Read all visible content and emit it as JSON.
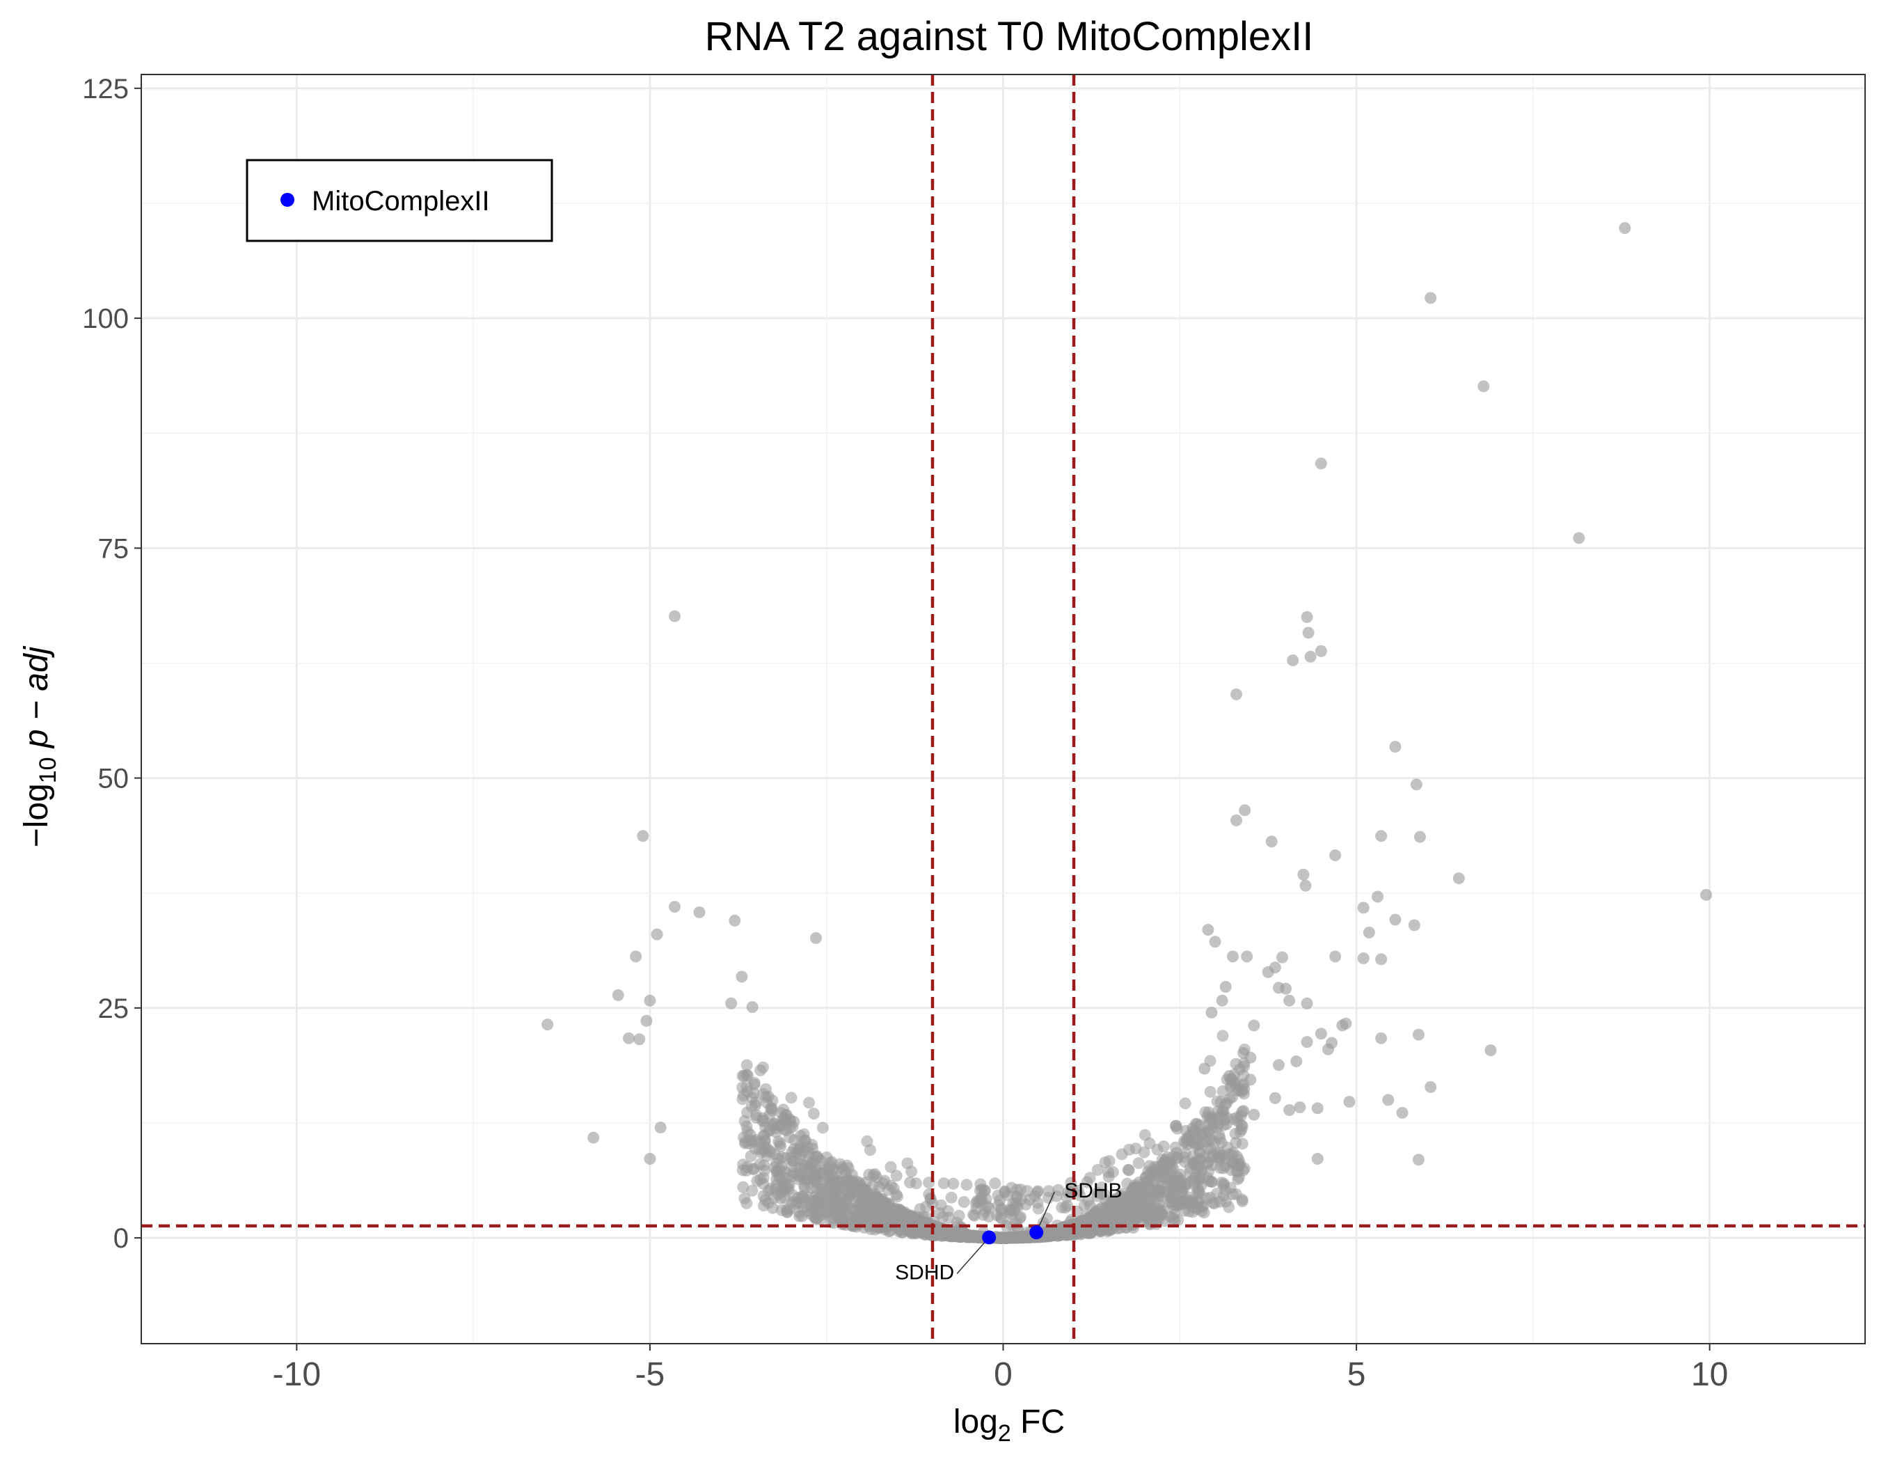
{
  "chart_data": {
    "type": "scatter",
    "title": "RNA T2 against T0 MitoComplexII",
    "xlabel": {
      "base": "log",
      "sub": "2",
      "rest": " FC"
    },
    "ylabel": {
      "minus": "−",
      "base": "log",
      "sub": "10",
      "rest": " p − adj"
    },
    "xlim": [
      -12.2,
      12.2
    ],
    "ylim": [
      -11.5,
      126.5
    ],
    "x_ticks": [
      -10,
      -5,
      0,
      5,
      10
    ],
    "x_tick_labels": [
      "-10",
      "-5",
      "0",
      "5",
      "10"
    ],
    "y_ticks": [
      0,
      25,
      50,
      75,
      100,
      125
    ],
    "y_tick_labels": [
      "0",
      "25",
      "50",
      "75",
      "100",
      "125"
    ],
    "grid": true,
    "thresholds": {
      "log2fc": [
        -1,
        1
      ],
      "neglog10_padj": 1.3,
      "color": "#9b1b1b"
    },
    "legend": {
      "position": "top-left",
      "entries": [
        {
          "label": "MitoComplexII",
          "color": "#0000ff"
        }
      ]
    },
    "background_points_color": "#999999",
    "background_outliers": [
      [
        8.8,
        109.8
      ],
      [
        6.05,
        102.2
      ],
      [
        6.8,
        92.6
      ],
      [
        4.5,
        84.2
      ],
      [
        8.15,
        76.1
      ],
      [
        -4.65,
        67.6
      ],
      [
        4.3,
        67.5
      ],
      [
        4.32,
        65.8
      ],
      [
        4.5,
        63.8
      ],
      [
        4.35,
        63.2
      ],
      [
        4.1,
        62.8
      ],
      [
        3.3,
        59.1
      ],
      [
        5.55,
        53.4
      ],
      [
        5.85,
        49.3
      ],
      [
        3.42,
        46.5
      ],
      [
        3.3,
        45.4
      ],
      [
        5.35,
        43.7
      ],
      [
        5.9,
        43.6
      ],
      [
        3.8,
        43.1
      ],
      [
        -5.1,
        43.7
      ],
      [
        4.7,
        41.6
      ],
      [
        4.25,
        39.5
      ],
      [
        4.28,
        38.3
      ],
      [
        6.45,
        39.1
      ],
      [
        9.95,
        37.3
      ],
      [
        5.1,
        35.9
      ],
      [
        5.3,
        37.1
      ],
      [
        5.55,
        34.6
      ],
      [
        5.82,
        34.0
      ],
      [
        5.18,
        33.2
      ],
      [
        -4.65,
        36.0
      ],
      [
        -4.3,
        35.4
      ],
      [
        -3.8,
        34.5
      ],
      [
        -4.9,
        33.0
      ],
      [
        -2.65,
        32.6
      ],
      [
        -5.2,
        30.6
      ],
      [
        -3.7,
        28.4
      ],
      [
        -5.45,
        26.4
      ],
      [
        -5.0,
        25.8
      ],
      [
        -3.55,
        25.1
      ],
      [
        -3.85,
        25.5
      ],
      [
        -6.45,
        23.2
      ],
      [
        -5.05,
        23.6
      ],
      [
        -5.3,
        21.7
      ],
      [
        -5.15,
        21.6
      ],
      [
        -5.8,
        10.9
      ],
      [
        -5.0,
        8.6
      ],
      [
        -4.85,
        12.0
      ],
      [
        2.9,
        33.5
      ],
      [
        3.0,
        32.2
      ],
      [
        3.25,
        30.6
      ],
      [
        3.45,
        30.6
      ],
      [
        3.95,
        30.5
      ],
      [
        4.7,
        30.6
      ],
      [
        5.1,
        30.4
      ],
      [
        5.35,
        30.3
      ],
      [
        3.85,
        29.4
      ],
      [
        3.75,
        28.9
      ],
      [
        3.9,
        27.2
      ],
      [
        4.0,
        27.1
      ],
      [
        3.15,
        27.3
      ],
      [
        3.1,
        25.8
      ],
      [
        4.05,
        25.8
      ],
      [
        4.3,
        25.5
      ],
      [
        2.95,
        24.5
      ],
      [
        4.85,
        23.3
      ],
      [
        4.8,
        23.1
      ],
      [
        3.55,
        23.1
      ],
      [
        4.5,
        22.2
      ],
      [
        4.65,
        21.2
      ],
      [
        5.35,
        21.7
      ],
      [
        5.88,
        22.1
      ],
      [
        6.9,
        20.4
      ],
      [
        3.4,
        20.1
      ],
      [
        3.5,
        19.6
      ],
      [
        4.6,
        20.5
      ],
      [
        4.3,
        21.3
      ],
      [
        4.15,
        19.2
      ],
      [
        3.9,
        18.8
      ],
      [
        2.85,
        18.4
      ],
      [
        3.2,
        17.6
      ],
      [
        3.5,
        17.2
      ],
      [
        4.9,
        14.8
      ],
      [
        5.45,
        15.0
      ],
      [
        6.05,
        16.4
      ],
      [
        5.65,
        13.6
      ],
      [
        4.2,
        14.2
      ],
      [
        4.45,
        14.1
      ],
      [
        4.05,
        13.9
      ],
      [
        3.55,
        13.4
      ],
      [
        4.45,
        8.6
      ],
      [
        5.88,
        8.5
      ],
      [
        3.85,
        15.2
      ],
      [
        3.4,
        13.8
      ]
    ],
    "mito_points": [
      {
        "gene": "SDHD",
        "x": -0.2,
        "y": 0.05
      },
      {
        "gene": "SDHB",
        "x": 0.47,
        "y": 0.6
      }
    ]
  }
}
